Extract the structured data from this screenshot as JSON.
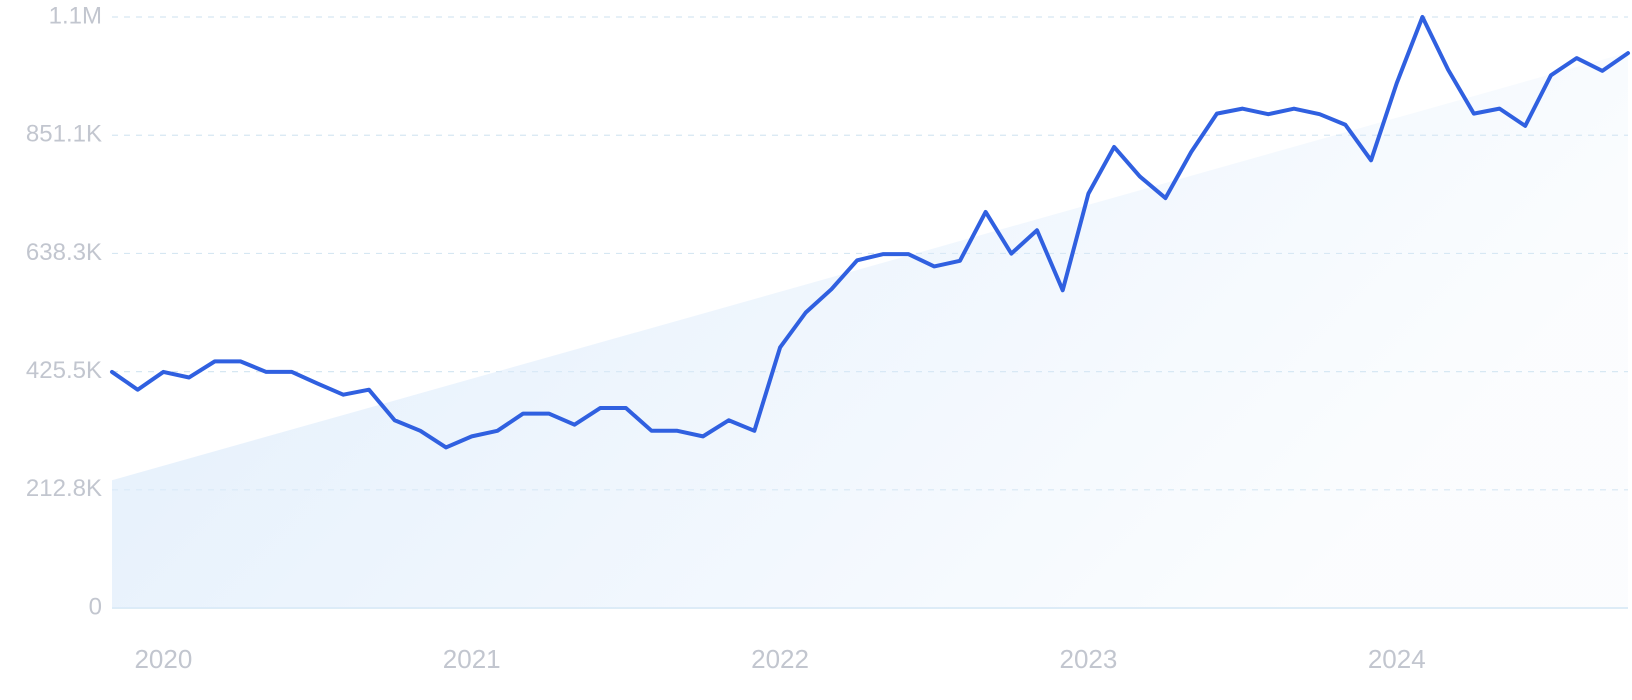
{
  "chart_data": {
    "type": "line",
    "title": "",
    "xlabel": "",
    "ylabel": "",
    "y_ticks": [
      "0",
      "212.8K",
      "425.5K",
      "638.3K",
      "851.1K",
      "1.1M"
    ],
    "y_tick_values": [
      0,
      212800,
      425500,
      638300,
      851100,
      1064000
    ],
    "ylim": [
      0,
      1064000
    ],
    "x_ticks": [
      "2020",
      "2021",
      "2022",
      "2023",
      "2024"
    ],
    "x_tick_values": [
      "2020-01",
      "2021-01",
      "2022-01",
      "2023-01",
      "2024-01"
    ],
    "xlim": [
      "2019-11",
      "2024-10"
    ],
    "grid": true,
    "legend": "none",
    "colors": {
      "line": "#3060e0",
      "trend_fill": "#dcebfb",
      "grid": "#d6e7f2",
      "tick_text": "#c2c6cf",
      "baseline": "#d2e5f4"
    },
    "trend": {
      "start": 230000,
      "end": 1000000
    },
    "series": [
      {
        "x": [
          "2019-11",
          "2019-12",
          "2020-01",
          "2020-02",
          "2020-03",
          "2020-04",
          "2020-05",
          "2020-06",
          "2020-07",
          "2020-08",
          "2020-09",
          "2020-10",
          "2020-11",
          "2020-12",
          "2021-01",
          "2021-02",
          "2021-03",
          "2021-04",
          "2021-05",
          "2021-06",
          "2021-07",
          "2021-08",
          "2021-09",
          "2021-10",
          "2021-11",
          "2021-12",
          "2022-01",
          "2022-02",
          "2022-03",
          "2022-04",
          "2022-05",
          "2022-06",
          "2022-07",
          "2022-08",
          "2022-09",
          "2022-10",
          "2022-11",
          "2022-12",
          "2023-01",
          "2023-02",
          "2023-03",
          "2023-04",
          "2023-05",
          "2023-06",
          "2023-07",
          "2023-08",
          "2023-09",
          "2023-10",
          "2023-11",
          "2023-12",
          "2024-01",
          "2024-02",
          "2024-03",
          "2024-04",
          "2024-05",
          "2024-06",
          "2024-07",
          "2024-08",
          "2024-09",
          "2024-10"
        ],
        "values": [
          425000,
          393000,
          425000,
          415000,
          444000,
          444000,
          425000,
          425000,
          404000,
          384000,
          393000,
          338000,
          319000,
          289000,
          309000,
          319000,
          350000,
          350000,
          330000,
          360000,
          360000,
          319000,
          319000,
          309000,
          338000,
          319000,
          469000,
          532000,
          574000,
          626000,
          637000,
          637000,
          615000,
          625000,
          713000,
          638000,
          680000,
          572000,
          746000,
          830000,
          777000,
          738000,
          821000,
          890000,
          899000,
          889000,
          899000,
          889000,
          870000,
          806000,
          945000,
          1064000,
          969000,
          890000,
          899000,
          868000,
          959000,
          990000,
          967000,
          999000
        ]
      }
    ]
  }
}
